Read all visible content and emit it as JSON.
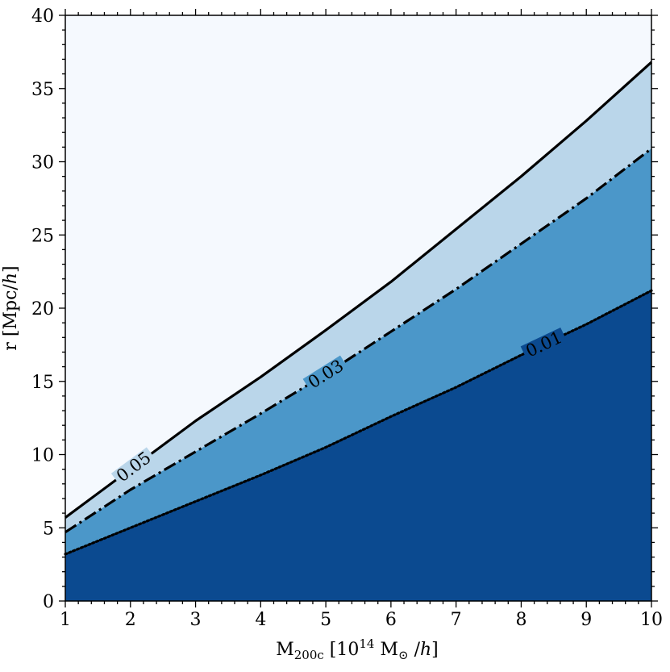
{
  "chart_data": {
    "type": "area",
    "xlabel": {
      "prefix": "M",
      "sub": "200c",
      "middle": " [10",
      "sup": "14",
      "after_sup": " M",
      "sun_sub": "⊙",
      "slash": " /",
      "h": "h",
      "close": "]"
    },
    "ylabel": {
      "prefix": "r [Mpc/",
      "h": "h",
      "close": "]"
    },
    "xlim": [
      1,
      10
    ],
    "ylim": [
      0,
      40
    ],
    "xticks": [
      1,
      2,
      3,
      4,
      5,
      6,
      7,
      8,
      9,
      10
    ],
    "xtick_labels": [
      "1",
      "2",
      "3",
      "4",
      "5",
      "6",
      "7",
      "8",
      "9",
      "10"
    ],
    "yticks": [
      0,
      5,
      10,
      15,
      20,
      25,
      30,
      35,
      40
    ],
    "ytick_labels": [
      "0",
      "5",
      "10",
      "15",
      "20",
      "25",
      "30",
      "35",
      "40"
    ],
    "background_color": "#f5f9fe",
    "series": [
      {
        "level": "0.05",
        "line_style": "solid",
        "fill_color": "#bad6ea",
        "x": [
          1,
          2,
          3,
          4,
          5,
          6,
          7,
          8,
          9,
          10
        ],
        "y": [
          5.7,
          9.0,
          12.3,
          15.3,
          18.5,
          21.8,
          25.4,
          29.0,
          32.8,
          36.8
        ]
      },
      {
        "level": "0.03",
        "line_style": "dashdot",
        "fill_color": "#4b97c9",
        "x": [
          1,
          2,
          3,
          4,
          5,
          6,
          7,
          8,
          9,
          10
        ],
        "y": [
          4.7,
          7.6,
          10.2,
          12.8,
          15.5,
          18.4,
          21.3,
          24.4,
          27.5,
          30.9
        ]
      },
      {
        "level": "0.01",
        "line_style": "dotted",
        "fill_color": "#0b4a90",
        "x": [
          1,
          2,
          3,
          4,
          5,
          6,
          7,
          8,
          9,
          10
        ],
        "y": [
          3.2,
          5.0,
          6.8,
          8.6,
          10.5,
          12.6,
          14.6,
          16.8,
          18.9,
          21.2
        ]
      }
    ],
    "contour_labels": [
      {
        "text": "0.05",
        "x": 2.05,
        "y": 9.3
      },
      {
        "text": "0.03",
        "x": 5.0,
        "y": 15.9
      },
      {
        "text": "0.01",
        "x": 8.35,
        "y": 17.4
      }
    ],
    "grid": false,
    "legend": "none"
  }
}
